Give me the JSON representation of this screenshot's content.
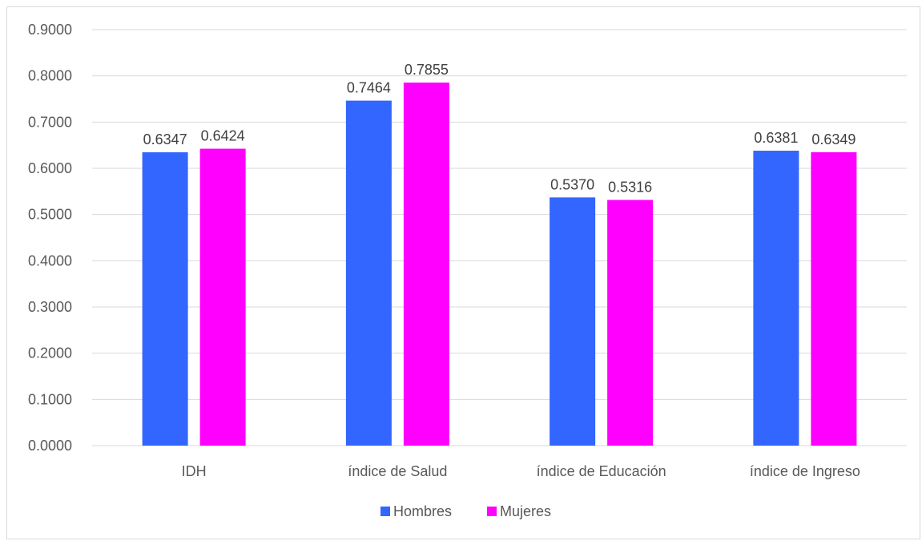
{
  "chart_data": {
    "type": "bar",
    "categories": [
      "IDH",
      "índice de  Salud",
      "índice de Educación",
      "índice de Ingreso"
    ],
    "series": [
      {
        "name": "Hombres",
        "values": [
          0.6347,
          0.7464,
          0.537,
          0.6381
        ],
        "color": "#3366ff"
      },
      {
        "name": "Mujeres",
        "values": [
          0.6424,
          0.7855,
          0.5316,
          0.6349
        ],
        "color": "#ff00ff"
      }
    ],
    "data_labels": [
      [
        "0.6347",
        "0.7464",
        "0.5370",
        "0.6381"
      ],
      [
        "0.6424",
        "0.7855",
        "0.5316",
        "0.6349"
      ]
    ],
    "yticks": [
      "0.0000",
      "0.1000",
      "0.2000",
      "0.3000",
      "0.4000",
      "0.5000",
      "0.6000",
      "0.7000",
      "0.8000",
      "0.9000"
    ],
    "ylim": [
      0,
      0.9
    ],
    "grid": true,
    "legend_position": "bottom"
  }
}
